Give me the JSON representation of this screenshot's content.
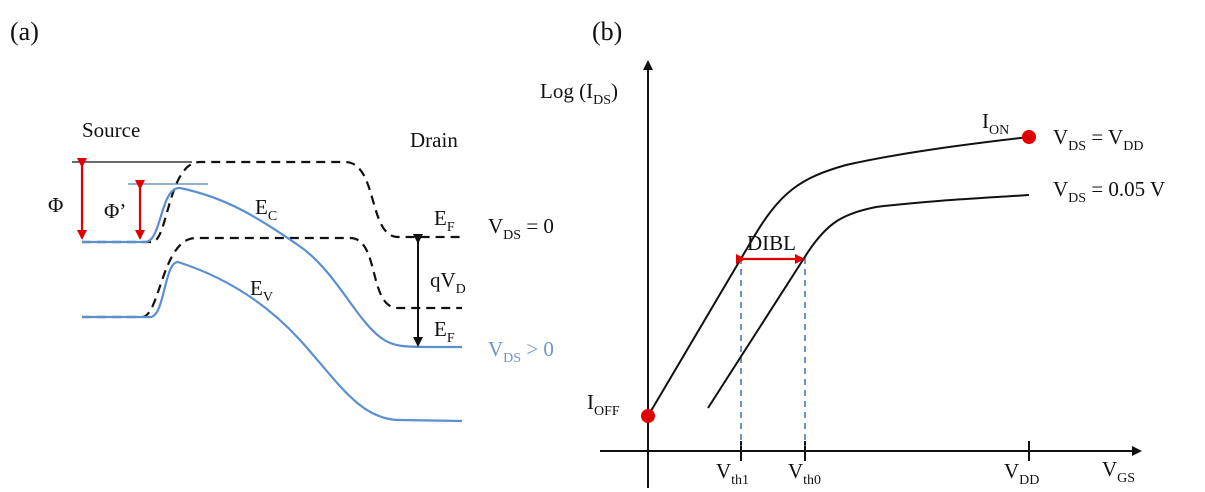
{
  "colors": {
    "blue_curve": "#5b8fd0",
    "black_curve": "#111111",
    "red_marker": "#e00000",
    "dashed_blue": "#4a78c0"
  },
  "panel_a": {
    "label": "(a)",
    "source_label": "Source",
    "drain_label": "Drain",
    "phi": "Φ",
    "phi_prime": "Φ’",
    "ec": {
      "main": "E",
      "sub": "C"
    },
    "ev": {
      "main": "E",
      "sub": "V"
    },
    "ef_top": {
      "main": "E",
      "sub": "F"
    },
    "ef_bottom": {
      "main": "E",
      "sub": "F"
    },
    "qvd": {
      "main": "qV",
      "sub": "D"
    },
    "vds_zero": {
      "main": "V",
      "sub": "DS",
      "tail": " = 0"
    },
    "vds_pos": {
      "main": "V",
      "sub": "DS",
      "tail": " > 0"
    }
  },
  "panel_b": {
    "label": "(b)",
    "y_axis": {
      "main": "Log (I",
      "sub": "DS",
      "tail": ")"
    },
    "x_axis": {
      "main": "V",
      "sub": "GS"
    },
    "i_on": {
      "main": "I",
      "sub": "ON"
    },
    "i_off": {
      "main": "I",
      "sub": "OFF"
    },
    "vds_vdd": {
      "main": "V",
      "sub": "DS",
      "mid": " = V",
      "sub2": "DD"
    },
    "vds_005": {
      "main": "V",
      "sub": "DS",
      "tail": " = 0.05 V"
    },
    "dibl": "DIBL",
    "vth1": {
      "main": "V",
      "sub": "th1"
    },
    "vth0": {
      "main": "V",
      "sub": "th0"
    },
    "vdd": {
      "main": "V",
      "sub": "DD"
    }
  }
}
